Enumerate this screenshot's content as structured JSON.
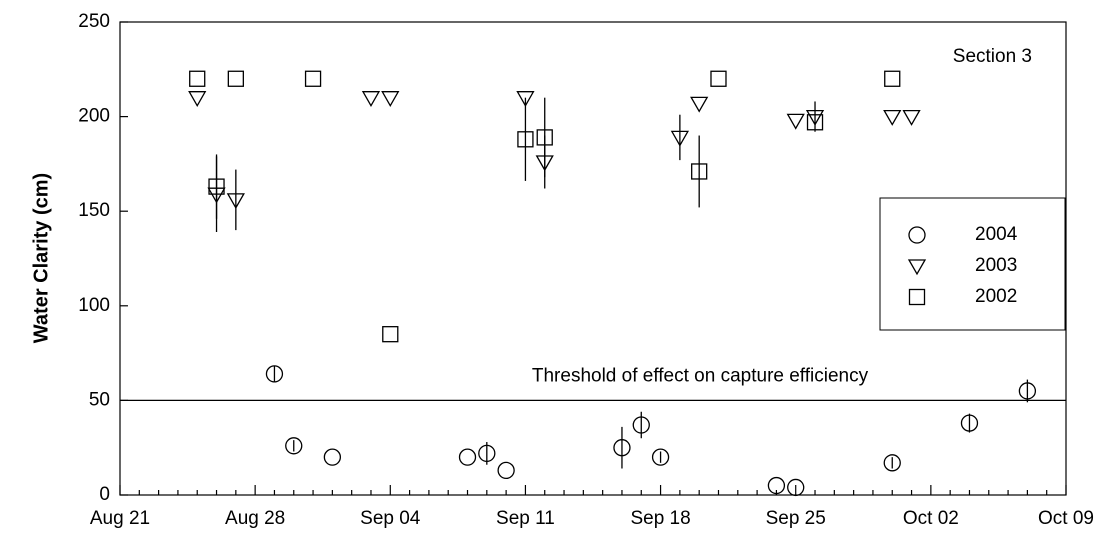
{
  "chart_data": {
    "type": "scatter",
    "ylabel": "Water Clarity (cm)",
    "annotation": "Section 3",
    "hline": {
      "value": 50,
      "label": "Threshold of effect on capture efficiency"
    },
    "xlim": [
      233,
      282
    ],
    "ylim": [
      0,
      250
    ],
    "xticks": [
      {
        "value": 233,
        "label": "Aug 21"
      },
      {
        "value": 240,
        "label": "Aug 28"
      },
      {
        "value": 247,
        "label": "Sep 04"
      },
      {
        "value": 254,
        "label": "Sep 11"
      },
      {
        "value": 261,
        "label": "Sep 18"
      },
      {
        "value": 268,
        "label": "Sep 25"
      },
      {
        "value": 275,
        "label": "Oct 02"
      },
      {
        "value": 282,
        "label": "Oct 09"
      }
    ],
    "xminorticks": [
      234,
      235,
      236,
      237,
      238,
      239,
      241,
      242,
      243,
      244,
      245,
      246,
      248,
      249,
      250,
      251,
      252,
      253,
      255,
      256,
      257,
      258,
      259,
      260,
      262,
      263,
      264,
      265,
      266,
      267,
      269,
      270,
      271,
      272,
      273,
      274,
      276,
      277,
      278,
      279,
      280,
      281
    ],
    "yticks": [
      0,
      50,
      100,
      150,
      200,
      250
    ],
    "legend": "right",
    "series": [
      {
        "name": "2004",
        "marker": "circle",
        "color": "#000000",
        "x": [
          241,
          242,
          244,
          251,
          252,
          253,
          259,
          260,
          261,
          267,
          268,
          273,
          277,
          280
        ],
        "values": [
          64,
          26,
          20,
          20,
          22,
          13,
          25,
          37,
          20,
          5,
          4,
          17,
          38,
          55
        ],
        "errors": [
          4,
          3,
          null,
          null,
          6,
          null,
          11,
          7,
          3,
          null,
          null,
          3,
          5,
          6
        ]
      },
      {
        "name": "2003",
        "marker": "triangle-down",
        "color": "#000000",
        "x": [
          237,
          238,
          239,
          246,
          247,
          254,
          255,
          262,
          263,
          268,
          269,
          273,
          274
        ],
        "values": [
          210,
          159,
          156,
          210,
          210,
          210,
          176,
          189,
          207,
          198,
          200,
          200,
          200
        ],
        "errors": [
          null,
          20,
          16,
          null,
          null,
          null,
          14,
          12,
          null,
          null,
          8,
          null,
          null
        ]
      },
      {
        "name": "2002",
        "marker": "square",
        "color": "#000000",
        "x": [
          237,
          238,
          239,
          243,
          247,
          254,
          255,
          263,
          264,
          269,
          273
        ],
        "values": [
          220,
          163,
          220,
          220,
          85,
          188,
          189,
          171,
          220,
          197,
          220
        ],
        "errors": [
          null,
          17,
          null,
          null,
          null,
          22,
          21,
          19,
          null,
          null,
          null
        ]
      }
    ]
  }
}
